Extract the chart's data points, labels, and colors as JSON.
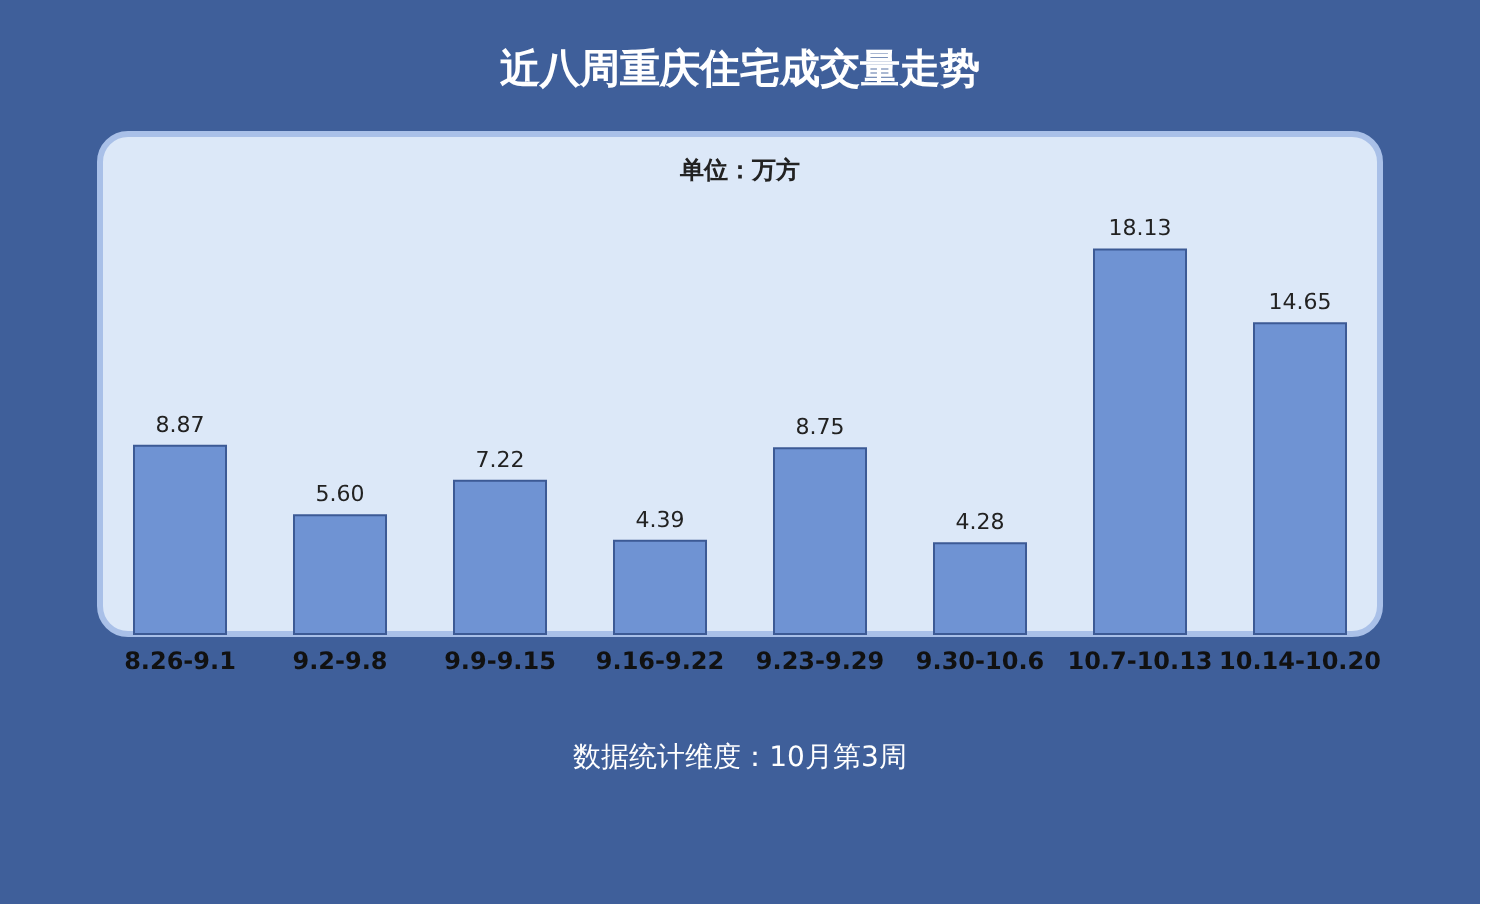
{
  "chart_data": {
    "type": "bar",
    "title": "近八周重庆住宅成交量走势",
    "subtitle": "单位：万方",
    "categories": [
      "8.26-9.1",
      "9.2-9.8",
      "9.9-9.15",
      "9.16-9.22",
      "9.23-9.29",
      "9.30-10.6",
      "10.7-10.13",
      "10.14-10.20"
    ],
    "values": [
      8.87,
      5.6,
      7.22,
      4.39,
      8.75,
      4.28,
      18.13,
      14.65
    ],
    "value_labels": [
      "8.87",
      "5.60",
      "7.22",
      "4.39",
      "8.75",
      "4.28",
      "18.13",
      "14.65"
    ],
    "color": "#6f93d3",
    "grid": false,
    "annotations": [
      "数据统计维度：10月第3周"
    ]
  }
}
